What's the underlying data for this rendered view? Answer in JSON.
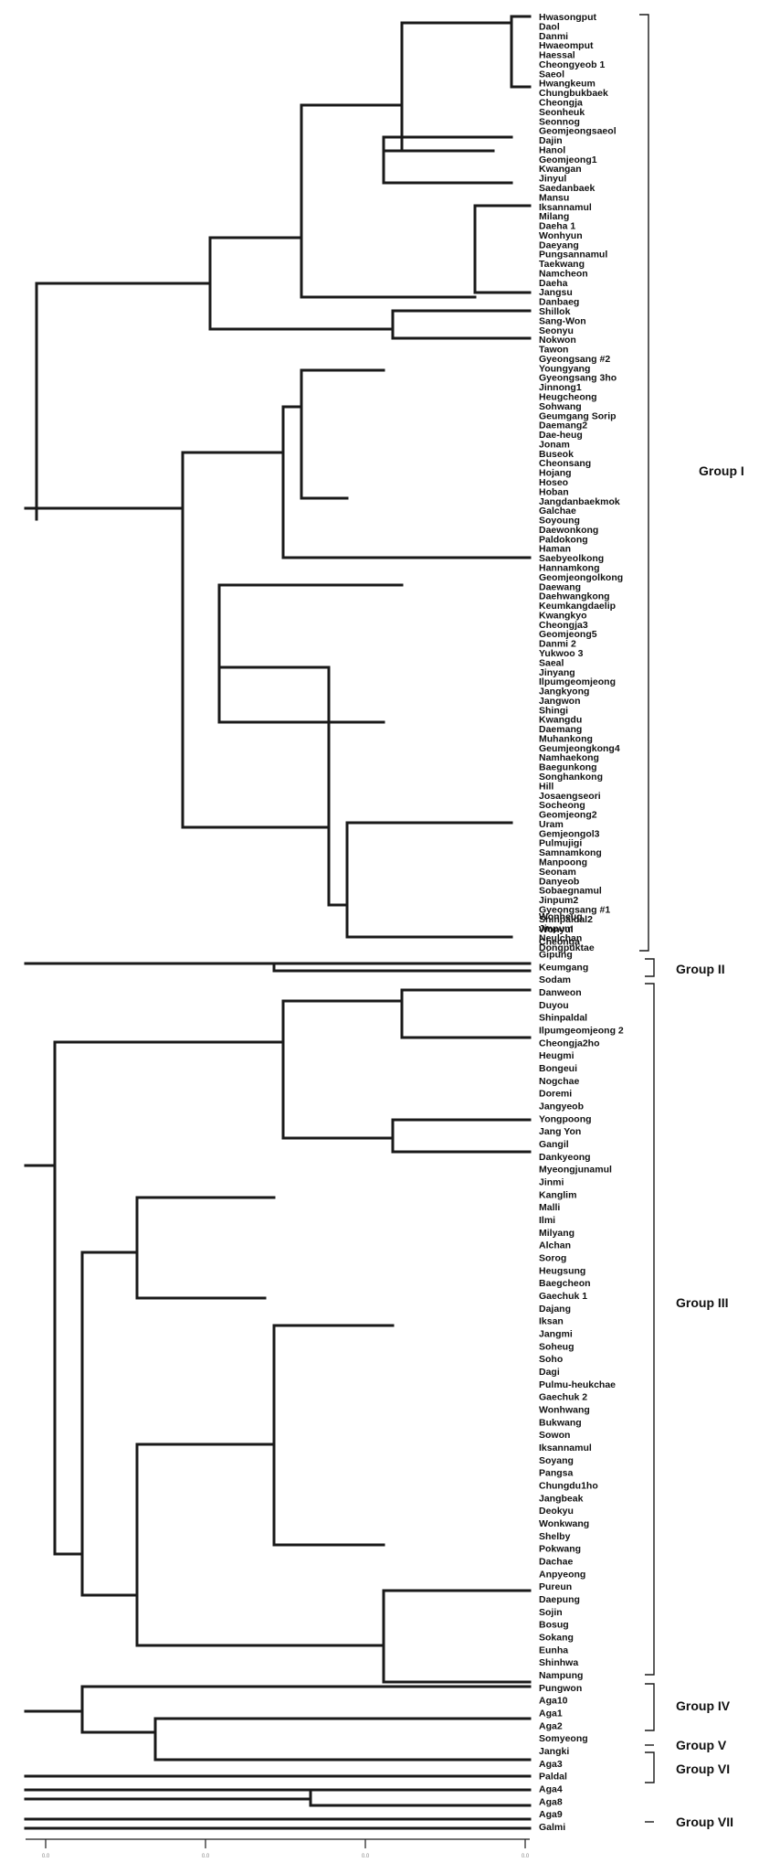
{
  "panel1": {
    "leaves": [
      "Hwasongput",
      "Daol",
      "Danmi",
      "Hwaeomput",
      "Haessal",
      "Cheongyeob 1",
      "Saeol",
      "Hwangkeum",
      "Chungbukbaek",
      "Cheongja",
      "Seonheuk",
      "Seonnog",
      "Geomjeongsaeol",
      "Dajin",
      "Hanol",
      "Geomjeong1",
      "Kwangan",
      "Jinyul",
      "Saedanbaek",
      "Mansu",
      "Iksannamul",
      "Milang",
      "Daeha 1",
      "Wonhyun",
      "Daeyang",
      "Pungsannamul",
      "Taekwang",
      "Namcheon",
      "Daeha",
      "Jangsu",
      "Danbaeg",
      "Shillok",
      "Sang-Won",
      "Seonyu",
      "Nokwon",
      "Tawon",
      "Gyeongsang #2",
      "Youngyang",
      "Gyeongsang 3ho",
      "Jinnong1",
      "Heugcheong",
      "Sohwang",
      "Geumgang Sorip",
      "Daemang2",
      "Dae-heug",
      "Jonam",
      "Buseok",
      "Cheonsang",
      "Hojang",
      "Hoseo",
      "Hoban",
      "Jangdanbaekmok",
      "Galchae",
      "Soyoung",
      "Daewonkong",
      "Paldokong",
      "Haman",
      "Saebyeolkong",
      "Hannamkong",
      "Geomjeongolkong",
      "Daewang",
      "Daehwangkong",
      "Keumkangdaelip",
      "Kwangkyo",
      "Cheongja3",
      "Geomjeong5",
      "Danmi 2",
      "Yukwoo 3",
      "Saeal",
      "Jinyang",
      "Ilpumgeomjeong",
      "Jangkyong",
      "Jangwon",
      "Shingi",
      "Kwangdu",
      "Daemang",
      "Muhankong",
      "Geumjeongkong4",
      "Namhaekong",
      "Baegunkong",
      "Songhankong",
      "Hill",
      "Josaengseori",
      "Socheong",
      "Geomjeong2",
      "Uram",
      "Gemjeongol3",
      "Pulmujigi",
      "Samnamkong",
      "Manpoong",
      "Seonam",
      "Danyeob",
      "Sobaegnamul",
      "Jinpum2",
      "Gyeongsang #1",
      "Shinpaldal2",
      "Jinpum",
      "Neulchan",
      "Dongpuktae"
    ]
  },
  "panel2": {
    "leaves": [
      "Wonheug",
      "Wonyul",
      "Cheonga",
      "Gipung",
      "Keumgang",
      "Sodam",
      "Danweon",
      "Duyou",
      "Shinpaldal",
      "Ilpumgeomjeong 2",
      "Cheongja2ho",
      "Heugmi",
      "Bongeui",
      "Nogchae",
      "Doremi",
      "Jangyeob",
      "Yongpoong",
      "Jang Yon",
      "Gangil",
      "Dankyeong",
      "Myeongjunamul",
      "Jinmi",
      "Kanglim",
      "Malli",
      "Ilmi",
      "Milyang",
      "Alchan",
      "Sorog",
      "Heugsung",
      "Baegcheon",
      "Gaechuk 1",
      "Dajang",
      "Iksan",
      "Jangmi",
      "Soheug",
      "Soho",
      "Dagi",
      "Pulmu-heukchae",
      "Gaechuk 2",
      "Wonhwang",
      "Bukwang",
      "Sowon",
      "Iksannamul",
      "Soyang",
      "Pangsa",
      "Chungdu1ho",
      "Jangbeak",
      "Deokyu",
      "Wonkwang",
      "Shelby",
      "Pokwang",
      "Dachae",
      "Anpyeong",
      "Pureun",
      "Daepung",
      "Sojin",
      "Bosug",
      "Sokang",
      "Eunha",
      "Shinhwa",
      "Nampung",
      "Pungwon",
      "Aga10",
      "Aga1",
      "Aga2",
      "Somyeong",
      "Jangki",
      "Aga3",
      "Paldal",
      "Aga4",
      "Aga8",
      "Aga9",
      "Galmi"
    ]
  },
  "groups": {
    "g1": "Group I",
    "g2": "Group II",
    "g3": "Group III",
    "g4": "Group IV",
    "g5": "Group V",
    "g6": "Group VI",
    "g7": "Group VII"
  },
  "axis_ticks": [
    "0.0",
    "0.0",
    "0.0",
    "0.0"
  ]
}
